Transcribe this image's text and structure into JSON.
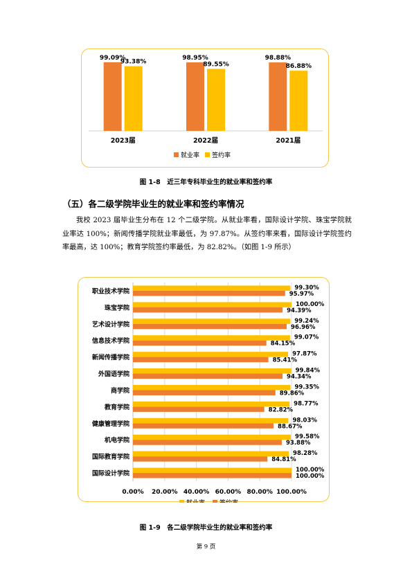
{
  "colors": {
    "employment": "#ED7D31",
    "signing": "#FFC000",
    "frame": "#F2C94C"
  },
  "chart_data": [
    {
      "type": "bar",
      "categories": [
        "2023届",
        "2022届",
        "2021届"
      ],
      "series": [
        {
          "name": "就业率",
          "values": [
            99.09,
            98.95,
            98.88
          ],
          "labels": [
            "99.09%",
            "98.95%",
            "98.88%"
          ]
        },
        {
          "name": "签约率",
          "values": [
            93.38,
            89.55,
            86.88
          ],
          "labels": [
            "93.38%",
            "89.55%",
            "86.88%"
          ]
        }
      ],
      "legend": "bottom",
      "grid": false
    },
    {
      "type": "bar",
      "orientation": "horizontal",
      "categories": [
        "职业技术学院",
        "珠宝学院",
        "艺术设计学院",
        "信息技术学院",
        "新闻传播学院",
        "外国语学院",
        "商学院",
        "教育学院",
        "健康管理学院",
        "机电学院",
        "国际教育学院",
        "国际设计学院"
      ],
      "series": [
        {
          "name": "就业率",
          "values": [
            99.3,
            100.0,
            99.24,
            99.07,
            97.87,
            99.84,
            99.35,
            98.77,
            98.03,
            99.58,
            98.28,
            100.0
          ],
          "labels": [
            "99.30%",
            "100.00%",
            "99.24%",
            "99.07%",
            "97.87%",
            "99.84%",
            "99.35%",
            "98.77%",
            "98.03%",
            "99.58%",
            "98.28%",
            "100.00%"
          ]
        },
        {
          "name": "签约率",
          "values": [
            95.97,
            94.39,
            96.96,
            84.15,
            85.41,
            94.34,
            89.86,
            82.82,
            88.67,
            93.88,
            84.81,
            100.0
          ],
          "labels": [
            "95.97%",
            "94.39%",
            "96.96%",
            "84.15%",
            "85.41%",
            "94.34%",
            "89.86%",
            "82.82%",
            "88.67%",
            "93.88%",
            "84.81%",
            "100.00%"
          ]
        }
      ],
      "xlim": [
        0,
        100
      ],
      "xticks": [
        "0.00%",
        "20.00%",
        "40.00%",
        "60.00%",
        "80.00%",
        "100.00%"
      ],
      "legend": "bottom",
      "grid": true
    }
  ],
  "figure1": {
    "caption": "图 1-8　近三年专科毕业生的就业率和签约率"
  },
  "section": {
    "heading": "（五）各二级学院毕业生的就业率和签约率情况"
  },
  "paragraph": "我校 2023 届毕业生分布在 12 个二级学院。从就业率看，国际设计学院、珠宝学院就业率达 100%；新闻传播学院就业率最低，为 97.87%。从签约率来看，国际设计学院签约率最高，达 100%；教育学院签约率最低，为 82.82%。（如图 1-9 所示）",
  "figure2": {
    "caption": "图 1-9　各二级学院毕业生的就业率和签约率"
  },
  "page": {
    "number": "第 9 页"
  }
}
